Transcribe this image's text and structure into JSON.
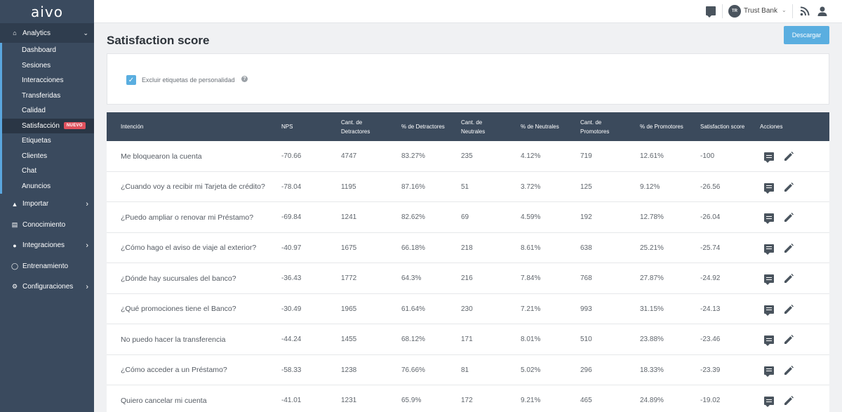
{
  "app": {
    "logo": "aivo"
  },
  "sidebar": {
    "analytics": {
      "label": "Analytics",
      "icon": "home-icon"
    },
    "sub_items": [
      {
        "label": "Dashboard"
      },
      {
        "label": "Sesiones"
      },
      {
        "label": "Interacciones"
      },
      {
        "label": "Transferidas"
      },
      {
        "label": "Calidad"
      },
      {
        "label": "Satisfacción",
        "badge": "NUEVO",
        "active": true
      },
      {
        "label": "Etiquetas"
      },
      {
        "label": "Clientes"
      },
      {
        "label": "Chat"
      },
      {
        "label": "Anuncios"
      }
    ],
    "items": [
      {
        "label": "Importar",
        "icon": "upload-icon",
        "chevron": true
      },
      {
        "label": "Conocimiento",
        "icon": "book-icon",
        "chevron": false
      },
      {
        "label": "Integraciones",
        "icon": "chat-bubbles-icon",
        "chevron": true
      },
      {
        "label": "Entrenamiento",
        "icon": "lightbulb-icon",
        "chevron": false
      },
      {
        "label": "Configuraciones",
        "icon": "gear-icon",
        "chevron": true
      }
    ]
  },
  "topbar": {
    "avatar_initials": "TR",
    "account_name": "Trust Bank"
  },
  "page": {
    "title": "Satisfaction score",
    "download_label": "Descargar",
    "filter_label": "Excluir etiquetas de personalidad",
    "filter_checked": true
  },
  "table": {
    "headers": [
      [
        "Intención"
      ],
      [
        "NPS"
      ],
      [
        "Cant. de",
        "Detractores"
      ],
      [
        "% de Detractores"
      ],
      [
        "Cant. de",
        "Neutrales"
      ],
      [
        "% de Neutrales"
      ],
      [
        "Cant. de",
        "Promotores"
      ],
      [
        "% de Promotores"
      ],
      [
        "Satisfaction score"
      ],
      [
        "Acciones"
      ]
    ],
    "rows": [
      [
        "Me bloquearon la cuenta",
        "-70.66",
        "4747",
        "83.27%",
        "235",
        "4.12%",
        "719",
        "12.61%",
        "-100"
      ],
      [
        "¿Cuando voy a recibir mi Tarjeta de crédito?",
        "-78.04",
        "1195",
        "87.16%",
        "51",
        "3.72%",
        "125",
        "9.12%",
        "-26.56"
      ],
      [
        "¿Puedo ampliar o renovar mi Préstamo?",
        "-69.84",
        "1241",
        "82.62%",
        "69",
        "4.59%",
        "192",
        "12.78%",
        "-26.04"
      ],
      [
        "¿Cómo hago el aviso de viaje al exterior?",
        "-40.97",
        "1675",
        "66.18%",
        "218",
        "8.61%",
        "638",
        "25.21%",
        "-25.74"
      ],
      [
        "¿Dónde hay sucursales del banco?",
        "-36.43",
        "1772",
        "64.3%",
        "216",
        "7.84%",
        "768",
        "27.87%",
        "-24.92"
      ],
      [
        "¿Qué promociones tiene el Banco?",
        "-30.49",
        "1965",
        "61.64%",
        "230",
        "7.21%",
        "993",
        "31.15%",
        "-24.13"
      ],
      [
        "No puedo hacer la transferencia",
        "-44.24",
        "1455",
        "68.12%",
        "171",
        "8.01%",
        "510",
        "23.88%",
        "-23.46"
      ],
      [
        "¿Cómo acceder a un Préstamo?",
        "-58.33",
        "1238",
        "76.66%",
        "81",
        "5.02%",
        "296",
        "18.33%",
        "-23.39"
      ],
      [
        "Quiero cancelar mi cuenta",
        "-41.01",
        "1231",
        "65.9%",
        "172",
        "9.21%",
        "465",
        "24.89%",
        "-19.02"
      ]
    ]
  },
  "colors": {
    "sidebar_bg": "#3a4a5e",
    "table_header_bg": "#3b4a5c",
    "accent": "#5aaee0",
    "badge": "#e0525e"
  }
}
